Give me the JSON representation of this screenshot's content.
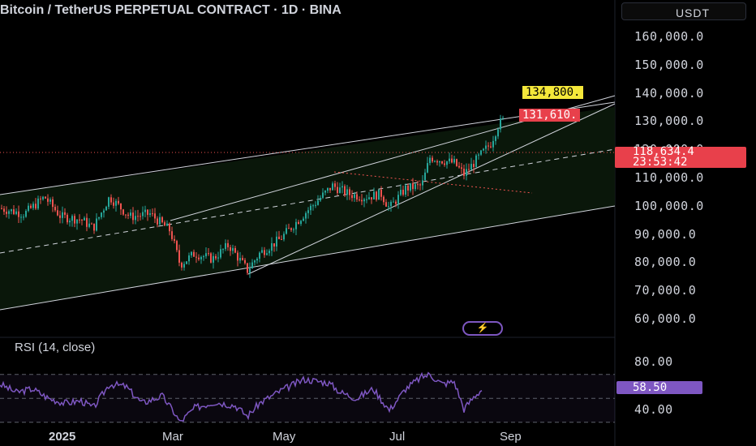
{
  "header": {
    "title": "Bitcoin / TetherUS PERPETUAL CONTRACT · 1D · BINA",
    "currency_button": "USDT"
  },
  "price_axis": {
    "labels": [
      "160,000.0",
      "150,000.0",
      "140,000.0",
      "130,000.0",
      "120,000.0",
      "110,000.0",
      "100,000.0",
      "90,000.0",
      "80,000.0",
      "70,000.0",
      "60,000.0"
    ]
  },
  "tags": {
    "target_high": "134,800.",
    "target_low": "131,610.",
    "last_price": "118,634.4",
    "countdown": "23:53:42"
  },
  "rsi": {
    "title": "RSI (14, close)",
    "axis_labels": [
      "80.00",
      "40.00"
    ],
    "value": "58.50"
  },
  "time_axis": [
    "2025",
    "Mar",
    "May",
    "Jul",
    "Sep"
  ],
  "colors": {
    "up": "#26a69a",
    "down": "#ef5350",
    "rsi_line": "#7e57c2",
    "channel_fill": "#0b1a0b",
    "accent_red": "#e8404b",
    "accent_yellow": "#f5e83a"
  },
  "icons": {
    "bolt": "lightning-bolt-icon"
  },
  "chart_data": {
    "type": "candlestick",
    "ylim": [
      55000,
      165000
    ],
    "rsi_levels": [
      70,
      50,
      30
    ]
  }
}
